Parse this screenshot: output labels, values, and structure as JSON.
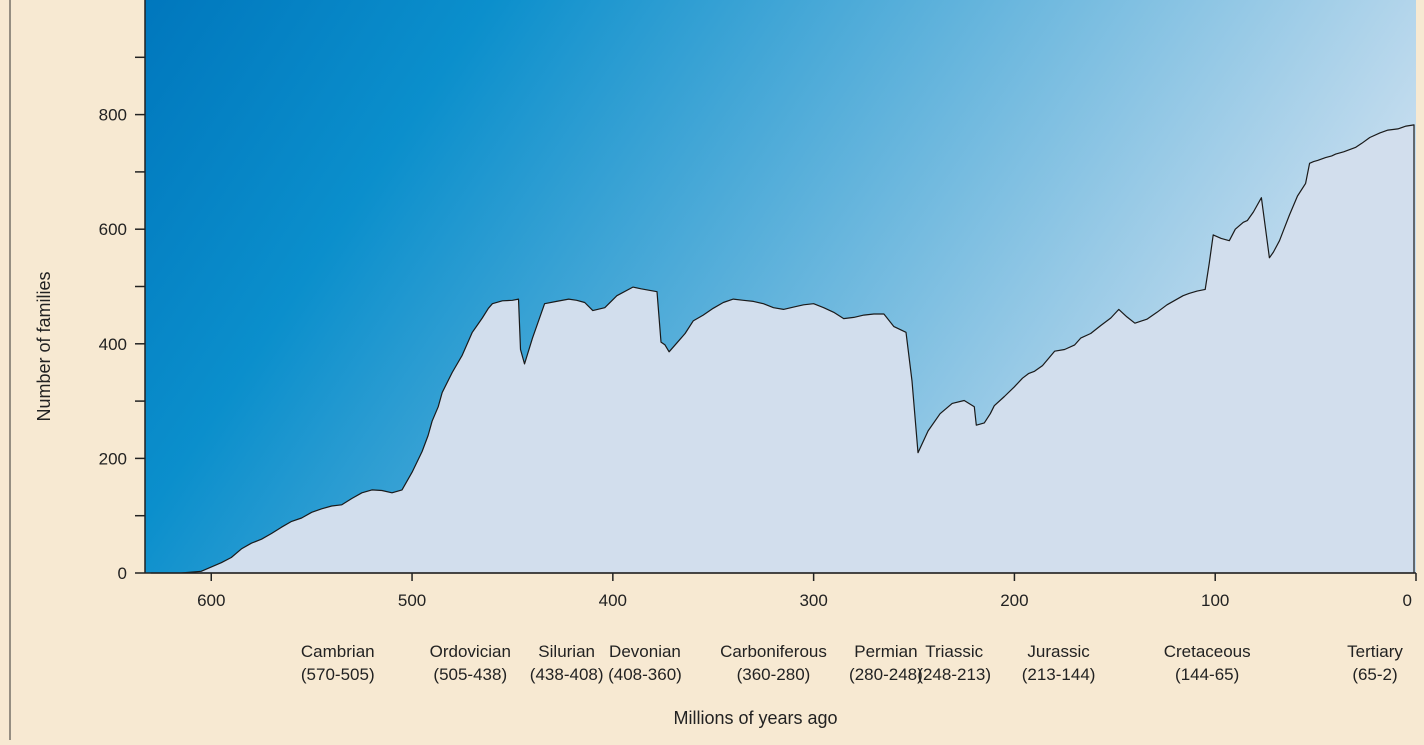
{
  "chart_data": {
    "type": "area",
    "title": "",
    "xlabel": "Millions of years ago",
    "ylabel": "Number of families",
    "xlim": [
      633,
      0
    ],
    "ylim": [
      0,
      1000
    ],
    "xticks": [
      600,
      500,
      400,
      300,
      200,
      100,
      0
    ],
    "yticks": [
      0,
      200,
      400,
      600,
      800
    ],
    "yticks_minor": [
      100,
      300,
      500,
      700,
      900
    ],
    "grid": false,
    "legend": "none",
    "colors": {
      "background": "#f7e9d2",
      "area_fill": "#d2deed",
      "area_outline": "#1a1a1a",
      "plot_gradient_start": "#0077bd",
      "plot_gradient_mid": "#0b8fcc",
      "plot_gradient_end": "#c8deef"
    },
    "periods": [
      {
        "name": "Cambrian",
        "range": "(570-505)",
        "center": 537
      },
      {
        "name": "Ordovician",
        "range": "(505-438)",
        "center": 471
      },
      {
        "name": "Silurian",
        "range": "(438-408)",
        "center": 423
      },
      {
        "name": "Devonian",
        "range": "(408-360)",
        "center": 384
      },
      {
        "name": "Carboniferous",
        "range": "(360-280)",
        "center": 320
      },
      {
        "name": "Permian",
        "range": "(280-248)",
        "center": 264
      },
      {
        "name": "Triassic",
        "range": "(248-213)",
        "center": 230
      },
      {
        "name": "Jurassic",
        "range": "(213-144)",
        "center": 178
      },
      {
        "name": "Cretaceous",
        "range": "(144-65)",
        "center": 104
      },
      {
        "name": "Tertiary",
        "range": "(65-2)",
        "center": 7
      }
    ],
    "series": [
      {
        "x": [
          630,
          615,
          605,
          595,
          590,
          585,
          580,
          575,
          570,
          565,
          560,
          555,
          550,
          545,
          540,
          535,
          530,
          525,
          520,
          515,
          510,
          505,
          500,
          495,
          492,
          490,
          487,
          485,
          480,
          475,
          470,
          468,
          465,
          462,
          460,
          455,
          450,
          447,
          446,
          444,
          440,
          434,
          428,
          422,
          418,
          414,
          410,
          404,
          398,
          390,
          386,
          378,
          376,
          374,
          372,
          368,
          364,
          360,
          355,
          350,
          345,
          340,
          335,
          330,
          325,
          320,
          315,
          310,
          305,
          300,
          295,
          290,
          285,
          280,
          275,
          270,
          265,
          260,
          254,
          251,
          248,
          243,
          237,
          231,
          225,
          220,
          219,
          215,
          212,
          210,
          205,
          200,
          196,
          193,
          190,
          186,
          180,
          175,
          170,
          167,
          162,
          157,
          152,
          148,
          144,
          140,
          134,
          129,
          124,
          116,
          113,
          109,
          105,
          103,
          101,
          97,
          93,
          90,
          86,
          84,
          81,
          77,
          73,
          71,
          68,
          66,
          63,
          59,
          55,
          53,
          51,
          49,
          45,
          42,
          40,
          36,
          30,
          27,
          23,
          18,
          14,
          9,
          5,
          1
        ],
        "y": [
          0,
          0,
          3,
          18,
          27,
          42,
          52,
          59,
          69,
          80,
          90,
          96,
          106,
          112,
          117,
          119,
          130,
          140,
          145,
          144,
          140,
          145,
          176,
          212,
          240,
          265,
          290,
          315,
          350,
          380,
          420,
          430,
          445,
          462,
          470,
          475,
          476,
          478,
          390,
          365,
          410,
          470,
          474,
          478,
          476,
          472,
          458,
          463,
          484,
          499,
          496,
          491,
          403,
          398,
          386,
          402,
          418,
          440,
          450,
          462,
          472,
          478,
          476,
          474,
          470,
          463,
          460,
          464,
          468,
          470,
          463,
          455,
          444,
          446,
          450,
          452,
          452,
          430,
          420,
          335,
          210,
          248,
          278,
          296,
          301,
          290,
          258,
          262,
          278,
          292,
          308,
          325,
          340,
          348,
          352,
          362,
          387,
          390,
          398,
          410,
          418,
          432,
          445,
          460,
          447,
          436,
          443,
          455,
          468,
          484,
          488,
          492,
          495,
          540,
          590,
          584,
          580,
          600,
          612,
          615,
          630,
          655,
          550,
          560,
          580,
          598,
          625,
          658,
          680,
          715,
          718,
          720,
          725,
          728,
          731,
          735,
          743,
          750,
          760,
          768,
          773,
          775,
          780,
          782
        ]
      }
    ]
  }
}
